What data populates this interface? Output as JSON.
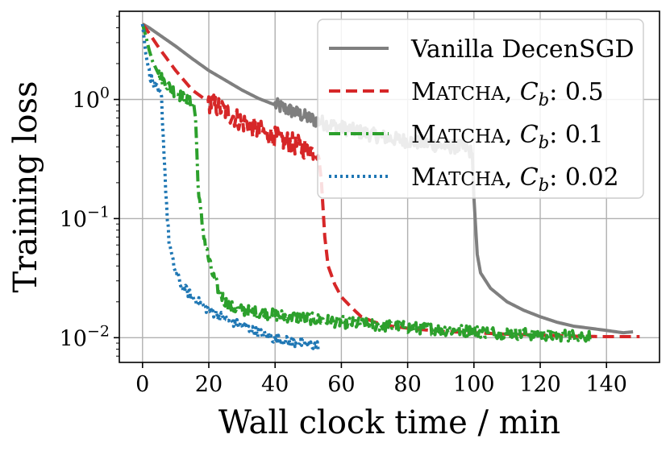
{
  "chart_data": {
    "type": "line",
    "title": "",
    "xlabel": "Wall clock time / min",
    "ylabel": "Training loss",
    "xlim": [
      -7,
      156
    ],
    "ylim": [
      0.0062,
      5.5
    ],
    "yscale": "log",
    "grid": true,
    "legend_position": "top-right",
    "x_ticks": [
      0,
      20,
      40,
      60,
      80,
      100,
      120,
      140
    ],
    "x_tick_labels": [
      "0",
      "20",
      "40",
      "60",
      "80",
      "100",
      "120",
      "140"
    ],
    "y_ticks": [
      {
        "value": 1,
        "base": "10",
        "exp": "0"
      },
      {
        "value": 0.1,
        "base": "10",
        "exp": "−1"
      },
      {
        "value": 0.01,
        "base": "10",
        "exp": "−2"
      }
    ],
    "series": [
      {
        "name": "Vanilla DecenSGD",
        "legend": {
          "main": "Vanilla DecenSGD",
          "suffix": ""
        },
        "color": "#7f7f7f",
        "style": "solid",
        "points": [
          [
            0,
            4.3
          ],
          [
            2,
            4.0
          ],
          [
            5,
            3.5
          ],
          [
            10,
            2.8
          ],
          [
            15,
            2.2
          ],
          [
            20,
            1.75
          ],
          [
            25,
            1.45
          ],
          [
            30,
            1.2
          ],
          [
            35,
            1.02
          ],
          [
            40,
            0.9
          ],
          [
            45,
            0.8
          ],
          [
            50,
            0.7
          ],
          [
            55,
            0.63
          ],
          [
            60,
            0.58
          ],
          [
            65,
            0.54
          ],
          [
            70,
            0.5
          ],
          [
            75,
            0.47
          ],
          [
            80,
            0.45
          ],
          [
            85,
            0.43
          ],
          [
            90,
            0.41
          ],
          [
            95,
            0.4
          ],
          [
            98,
            0.39
          ],
          [
            99.5,
            0.35
          ],
          [
            100,
            0.15
          ],
          [
            101,
            0.05
          ],
          [
            102,
            0.035
          ],
          [
            105,
            0.026
          ],
          [
            110,
            0.02
          ],
          [
            115,
            0.017
          ],
          [
            120,
            0.015
          ],
          [
            125,
            0.0135
          ],
          [
            130,
            0.0125
          ],
          [
            135,
            0.012
          ],
          [
            140,
            0.0115
          ],
          [
            145,
            0.011
          ],
          [
            148,
            0.0112
          ]
        ],
        "noise": 0.06,
        "noise_range": [
          40,
          99
        ]
      },
      {
        "name": "Matcha, Cb: 0.5",
        "legend": {
          "main": "Matcha",
          "suffix": ": 0.5"
        },
        "color": "#d62728",
        "style": "dashed",
        "points": [
          [
            0,
            4.3
          ],
          [
            2,
            3.6
          ],
          [
            5,
            2.7
          ],
          [
            10,
            1.75
          ],
          [
            15,
            1.2
          ],
          [
            20,
            0.95
          ],
          [
            25,
            0.8
          ],
          [
            30,
            0.65
          ],
          [
            35,
            0.55
          ],
          [
            40,
            0.48
          ],
          [
            45,
            0.43
          ],
          [
            50,
            0.38
          ],
          [
            53,
            0.37
          ],
          [
            54,
            0.2
          ],
          [
            55,
            0.07
          ],
          [
            56,
            0.04
          ],
          [
            58,
            0.028
          ],
          [
            60,
            0.022
          ],
          [
            63,
            0.018
          ],
          [
            66,
            0.015
          ],
          [
            70,
            0.0135
          ],
          [
            75,
            0.0125
          ],
          [
            80,
            0.012
          ],
          [
            90,
            0.0113
          ],
          [
            100,
            0.011
          ],
          [
            110,
            0.0107
          ],
          [
            120,
            0.0105
          ],
          [
            130,
            0.0103
          ],
          [
            140,
            0.0102
          ],
          [
            150,
            0.0102
          ]
        ],
        "noise": 0.09,
        "noise_range": [
          20,
          53
        ]
      },
      {
        "name": "Matcha, Cb: 0.1",
        "legend": {
          "main": "Matcha",
          "suffix": ": 0.1"
        },
        "color": "#2ca02c",
        "style": "dashdot",
        "points": [
          [
            0,
            4.3
          ],
          [
            1,
            3.4
          ],
          [
            2,
            2.6
          ],
          [
            3,
            2.1
          ],
          [
            5,
            1.6
          ],
          [
            7,
            1.35
          ],
          [
            10,
            1.15
          ],
          [
            13,
            1.0
          ],
          [
            15.5,
            0.9
          ],
          [
            16,
            0.7
          ],
          [
            16.5,
            0.3
          ],
          [
            17,
            0.15
          ],
          [
            18,
            0.09
          ],
          [
            19,
            0.06
          ],
          [
            20,
            0.045
          ],
          [
            21,
            0.035
          ],
          [
            23,
            0.025
          ],
          [
            25,
            0.02
          ],
          [
            27,
            0.018
          ],
          [
            30,
            0.017
          ],
          [
            40,
            0.0155
          ],
          [
            50,
            0.0145
          ],
          [
            60,
            0.0135
          ],
          [
            70,
            0.0128
          ],
          [
            80,
            0.0122
          ],
          [
            90,
            0.0117
          ],
          [
            100,
            0.0113
          ],
          [
            110,
            0.0109
          ],
          [
            120,
            0.0106
          ],
          [
            130,
            0.0104
          ],
          [
            135,
            0.0103
          ]
        ],
        "noise": 0.05,
        "noise_range": [
          5,
          135
        ]
      },
      {
        "name": "Matcha, Cb: 0.02",
        "legend": {
          "main": "Matcha",
          "suffix": ": 0.02"
        },
        "color": "#1f77b4",
        "style": "dotted",
        "points": [
          [
            0,
            4.3
          ],
          [
            0.5,
            3.2
          ],
          [
            1,
            2.4
          ],
          [
            2,
            1.7
          ],
          [
            3,
            1.4
          ],
          [
            4,
            1.25
          ],
          [
            5,
            1.15
          ],
          [
            5.7,
            1.08
          ],
          [
            6,
            0.7
          ],
          [
            6.5,
            0.35
          ],
          [
            7,
            0.18
          ],
          [
            7.5,
            0.1
          ],
          [
            8,
            0.065
          ],
          [
            9,
            0.045
          ],
          [
            10,
            0.035
          ],
          [
            12,
            0.027
          ],
          [
            15,
            0.022
          ],
          [
            20,
            0.017
          ],
          [
            25,
            0.0145
          ],
          [
            30,
            0.0125
          ],
          [
            35,
            0.011
          ],
          [
            40,
            0.0098
          ],
          [
            45,
            0.0092
          ],
          [
            50,
            0.0088
          ],
          [
            53,
            0.0086
          ]
        ],
        "noise": 0.04,
        "noise_range": [
          2,
          53
        ]
      }
    ]
  }
}
